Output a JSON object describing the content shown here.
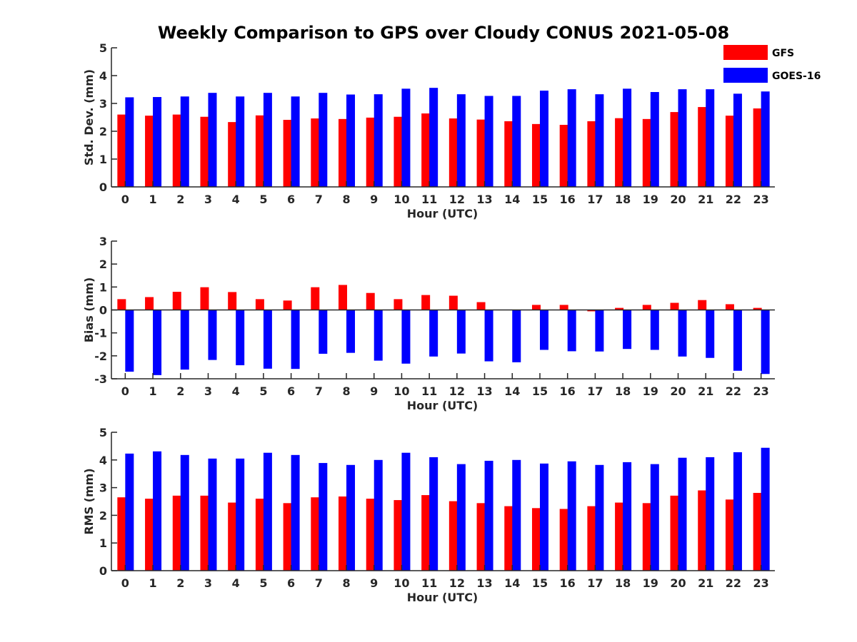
{
  "title": "Weekly Comparison to GPS over Cloudy CONUS 2021-05-08",
  "colors": {
    "GFS": "#ff0000",
    "GOES-16": "#0000ff"
  },
  "chart_data": [
    {
      "type": "bar",
      "categories": [
        "0",
        "1",
        "2",
        "3",
        "4",
        "5",
        "6",
        "7",
        "8",
        "9",
        "10",
        "11",
        "12",
        "13",
        "14",
        "15",
        "16",
        "17",
        "18",
        "19",
        "20",
        "21",
        "22",
        "23"
      ],
      "xlabel": "Hour (UTC)",
      "ylabel": "Std. Dev. (mm)",
      "ylim": [
        0,
        5
      ],
      "yticks": [
        0,
        1,
        2,
        3,
        4,
        5
      ],
      "legend": "top-right",
      "series": [
        {
          "name": "GFS",
          "values": [
            2.6,
            2.56,
            2.6,
            2.52,
            2.33,
            2.57,
            2.41,
            2.46,
            2.44,
            2.49,
            2.52,
            2.64,
            2.46,
            2.42,
            2.36,
            2.26,
            2.23,
            2.36,
            2.47,
            2.44,
            2.69,
            2.87,
            2.56,
            2.82
          ]
        },
        {
          "name": "GOES-16",
          "values": [
            3.22,
            3.23,
            3.25,
            3.38,
            3.25,
            3.38,
            3.25,
            3.38,
            3.32,
            3.33,
            3.53,
            3.56,
            3.33,
            3.27,
            3.27,
            3.46,
            3.51,
            3.33,
            3.53,
            3.41,
            3.51,
            3.51,
            3.35,
            3.43
          ]
        }
      ]
    },
    {
      "type": "bar",
      "categories": [
        "0",
        "1",
        "2",
        "3",
        "4",
        "5",
        "6",
        "7",
        "8",
        "9",
        "10",
        "11",
        "12",
        "13",
        "14",
        "15",
        "16",
        "17",
        "18",
        "19",
        "20",
        "21",
        "22",
        "23"
      ],
      "xlabel": "Hour (UTC)",
      "ylabel": "Bias (mm)",
      "ylim": [
        -3,
        3
      ],
      "yticks": [
        -3,
        -2,
        -1,
        0,
        1,
        2,
        3
      ],
      "series": [
        {
          "name": "GFS",
          "values": [
            0.47,
            0.56,
            0.79,
            0.99,
            0.78,
            0.47,
            0.41,
            0.99,
            1.09,
            0.74,
            0.47,
            0.65,
            0.62,
            0.34,
            0.0,
            0.22,
            0.22,
            -0.06,
            0.09,
            0.22,
            0.31,
            0.43,
            0.25,
            0.09
          ]
        },
        {
          "name": "GOES-16",
          "values": [
            -2.69,
            -2.84,
            -2.6,
            -2.18,
            -2.41,
            -2.56,
            -2.57,
            -1.91,
            -1.87,
            -2.21,
            -2.34,
            -2.03,
            -1.9,
            -2.24,
            -2.28,
            -1.74,
            -1.8,
            -1.81,
            -1.7,
            -1.74,
            -2.03,
            -2.09,
            -2.65,
            -2.79
          ]
        }
      ]
    },
    {
      "type": "bar",
      "categories": [
        "0",
        "1",
        "2",
        "3",
        "4",
        "5",
        "6",
        "7",
        "8",
        "9",
        "10",
        "11",
        "12",
        "13",
        "14",
        "15",
        "16",
        "17",
        "18",
        "19",
        "20",
        "21",
        "22",
        "23"
      ],
      "xlabel": "Hour (UTC)",
      "ylabel": "RMS (mm)",
      "ylim": [
        0,
        5
      ],
      "yticks": [
        0,
        1,
        2,
        3,
        4,
        5
      ],
      "series": [
        {
          "name": "GFS",
          "values": [
            2.65,
            2.6,
            2.71,
            2.71,
            2.46,
            2.6,
            2.44,
            2.65,
            2.68,
            2.6,
            2.55,
            2.73,
            2.51,
            2.44,
            2.33,
            2.26,
            2.23,
            2.33,
            2.46,
            2.44,
            2.71,
            2.9,
            2.57,
            2.81
          ]
        },
        {
          "name": "GOES-16",
          "values": [
            4.23,
            4.31,
            4.18,
            4.05,
            4.05,
            4.26,
            4.18,
            3.89,
            3.82,
            4.0,
            4.26,
            4.1,
            3.85,
            3.97,
            4.0,
            3.87,
            3.95,
            3.82,
            3.92,
            3.85,
            4.08,
            4.1,
            4.28,
            4.44
          ]
        }
      ]
    }
  ]
}
